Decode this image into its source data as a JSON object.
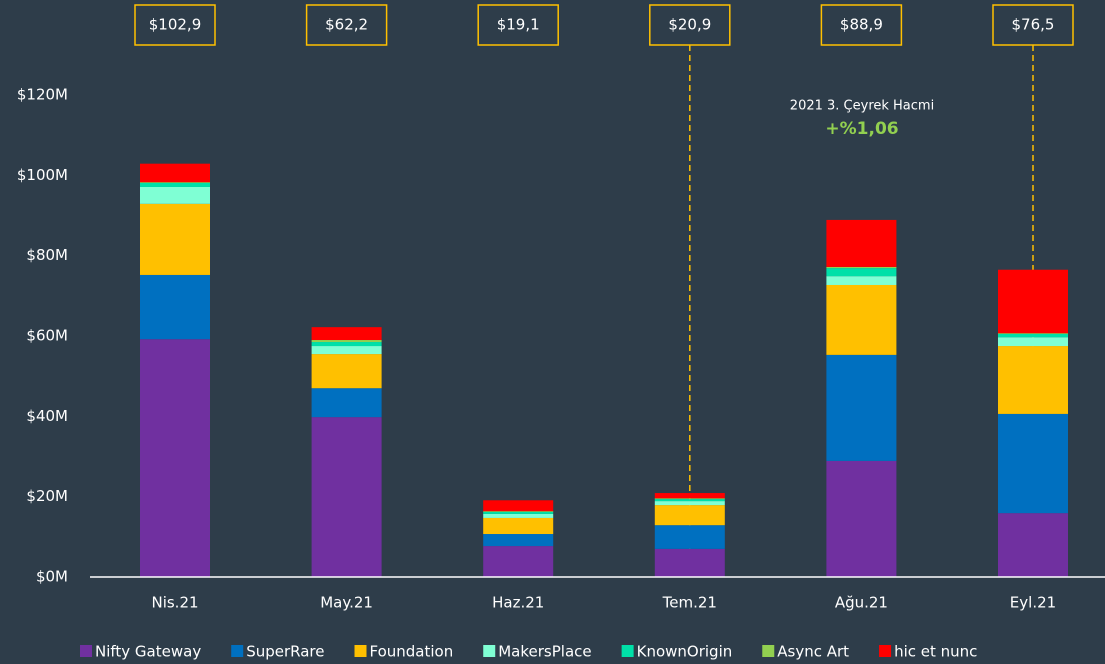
{
  "chart_data": {
    "type": "stacked_bar",
    "categories": [
      "Nis.21",
      "May.21",
      "Haz.21",
      "Tem.21",
      "Ağu.21",
      "Eyl.21"
    ],
    "total_labels": [
      "$102,9",
      "$62,2",
      "$19,1",
      "$20,9",
      "$88,9",
      "$76,5"
    ],
    "series": [
      {
        "name": "Nifty Gateway",
        "color": "#7030a0",
        "values": [
          59.2,
          39.8,
          7.7,
          7.0,
          28.9,
          15.9
        ]
      },
      {
        "name": "SuperRare",
        "color": "#0070c0",
        "values": [
          16.0,
          7.2,
          3.0,
          5.9,
          26.4,
          24.7
        ]
      },
      {
        "name": "Foundation",
        "color": "#ffc000",
        "values": [
          17.7,
          8.5,
          4.0,
          5.0,
          17.4,
          16.9
        ]
      },
      {
        "name": "MakersPlace",
        "color": "#7fffd4",
        "values": [
          4.2,
          2.0,
          1.0,
          1.0,
          2.2,
          2.2
        ]
      },
      {
        "name": "KnownOrigin",
        "color": "#00e0a8",
        "values": [
          1.0,
          1.0,
          0.5,
          0.5,
          2.0,
          0.8
        ]
      },
      {
        "name": "Async Art",
        "color": "#92d050",
        "values": [
          0.2,
          0.5,
          0.2,
          0.2,
          0.3,
          0.2
        ]
      },
      {
        "name": "hic et nunc",
        "color": "#ff0000",
        "values": [
          4.6,
          3.2,
          2.7,
          1.3,
          11.7,
          15.8
        ]
      }
    ],
    "ylim": [
      0,
      120
    ],
    "yticks": [
      {
        "value": 0,
        "label": "$0M"
      },
      {
        "value": 20,
        "label": "$20M"
      },
      {
        "value": 40,
        "label": "$40M"
      },
      {
        "value": 60,
        "label": "$60M"
      },
      {
        "value": 80,
        "label": "$80M"
      },
      {
        "value": 100,
        "label": "$100M"
      },
      {
        "value": 120,
        "label": "$120M"
      }
    ],
    "annotation": {
      "title": "2021 3. Çeyrek Hacmi",
      "value": "+%1,06"
    }
  }
}
